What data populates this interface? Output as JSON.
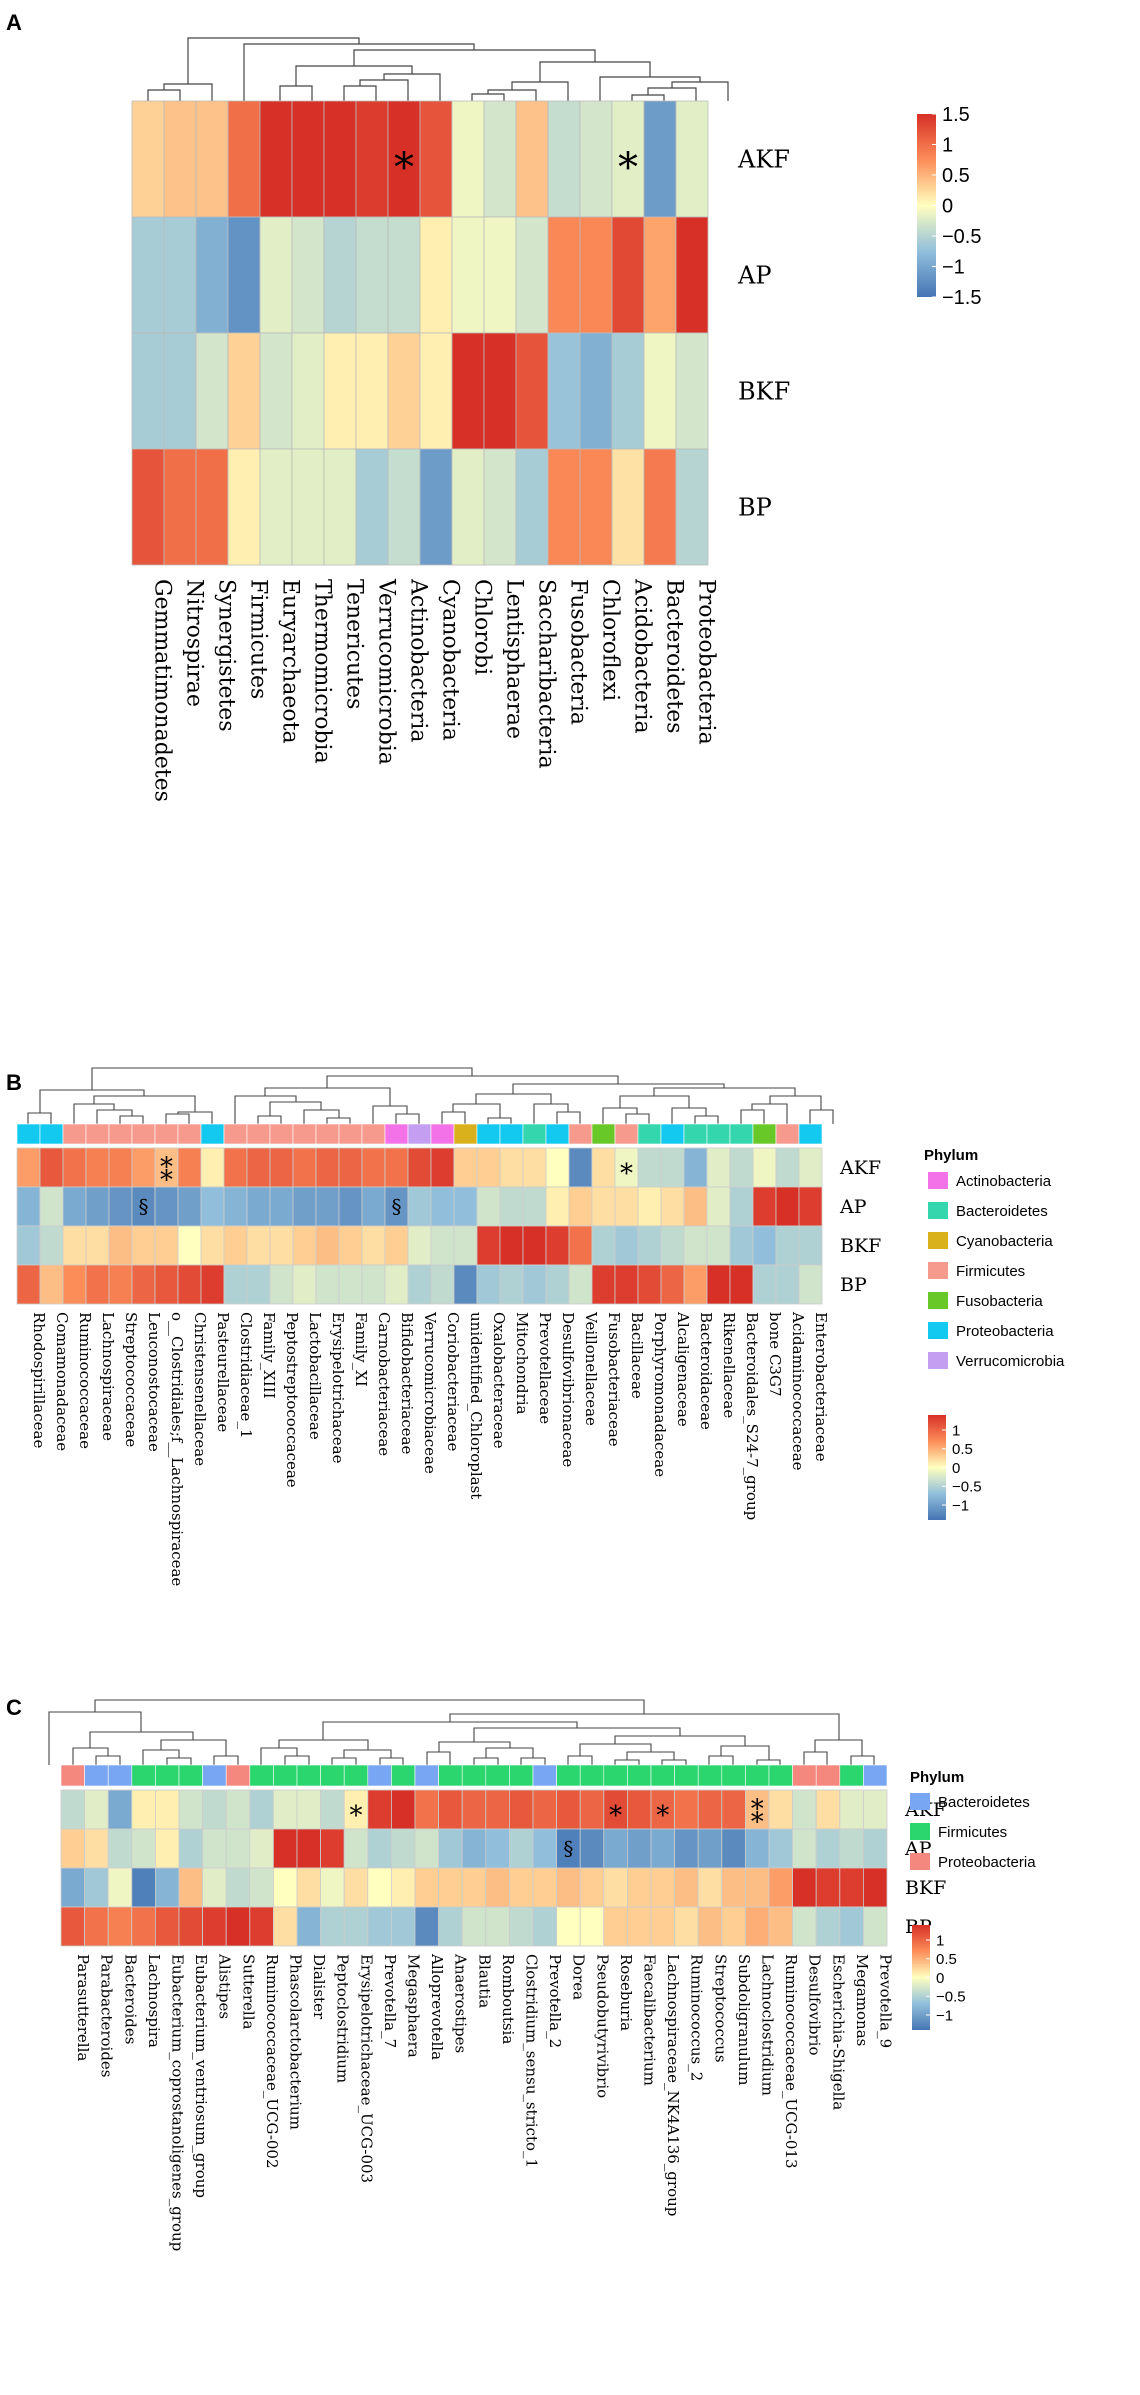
{
  "chart_data": [
    {
      "panel": "A",
      "type": "heatmap",
      "rows": [
        "AKF",
        "AP",
        "BKF",
        "BP"
      ],
      "columns": [
        "Gemmatimonadetes",
        "Nitrospirae",
        "Synergistetes",
        "Firmicutes",
        "Euryarchaeota",
        "Thermomicrobia",
        "Tenericutes",
        "Verrucomicrobia",
        "Actinobacteria",
        "Cyanobacteria",
        "Chlorobi",
        "Lentisphaerae",
        "Saccharibacteria",
        "Fusobacteria",
        "Chloroflexi",
        "Acidobacteria",
        "Bacteroidetes",
        "Proteobacteria"
      ],
      "values": [
        [
          0.3,
          0.4,
          0.4,
          1.0,
          1.5,
          1.5,
          1.5,
          1.4,
          1.5,
          1.2,
          -0.1,
          -0.3,
          0.4,
          -0.4,
          -0.3,
          -0.2,
          -1.1,
          -0.2
        ],
        [
          -0.6,
          -0.6,
          -0.9,
          -1.2,
          -0.2,
          -0.3,
          -0.5,
          -0.4,
          -0.4,
          0.1,
          -0.1,
          -0.1,
          -0.3,
          0.8,
          0.8,
          1.3,
          0.6,
          1.5
        ],
        [
          -0.6,
          -0.6,
          -0.3,
          0.3,
          -0.3,
          -0.2,
          0.1,
          0.1,
          0.3,
          0.1,
          1.5,
          1.5,
          1.2,
          -0.7,
          -0.9,
          -0.6,
          -0.1,
          -0.3
        ],
        [
          1.2,
          1.0,
          1.0,
          0.1,
          -0.2,
          -0.2,
          -0.2,
          -0.6,
          -0.4,
          -1.1,
          -0.2,
          -0.3,
          -0.6,
          0.8,
          0.8,
          0.2,
          0.9,
          -0.5
        ]
      ],
      "annotations": [
        {
          "row": 0,
          "col": 8,
          "text": "*"
        },
        {
          "row": 0,
          "col": 15,
          "text": "*"
        }
      ],
      "legend": {
        "ticks": [
          "1.5",
          "1",
          "0.5",
          "0",
          "−0.5",
          "−1",
          "−1.5"
        ],
        "range": [
          -1.5,
          1.5
        ]
      }
    },
    {
      "panel": "B",
      "type": "heatmap",
      "rows": [
        "AKF",
        "AP",
        "BKF",
        "BP"
      ],
      "columns": [
        "Rhodospirillaceae",
        "Comamonadaceae",
        "Ruminococcaceae",
        "Lachnospiraceae",
        "Streptococcaceae",
        "Leuconostocaceae",
        "o__Clostridiales;f__Lachnospiraceae",
        "Christensenellaceae",
        "Pasteurellaceae",
        "Clostridiaceae_1",
        "Family_XIII",
        "Peptostreptococcaceae",
        "Lactobacillaceae",
        "Erysipelotrichaceae",
        "Family_XI",
        "Carnobacteriaceae",
        "Bifidobacteriaceae",
        "Verrucomicrobiaceae",
        "Coriobacteriaceae",
        "unidentified_Chloroplast",
        "Oxalobacteraceae",
        "Mitochondria",
        "Prevotellaceae",
        "Desulfovibrionaceae",
        "Veillonellaceae",
        "Fusobacteriaceae",
        "Bacillaceae",
        "Porphyromonadaceae",
        "Alcaligenaceae",
        "Bacteroidaceae",
        "Rikenellaceae",
        "Bacteroidales_S24-7_group",
        "bone C3G7",
        "Acidaminococcaceae",
        "Enterobacteriaceae"
      ],
      "phylum": [
        "Proteobacteria",
        "Proteobacteria",
        "Firmicutes",
        "Firmicutes",
        "Firmicutes",
        "Firmicutes",
        "Firmicutes",
        "Firmicutes",
        "Proteobacteria",
        "Firmicutes",
        "Firmicutes",
        "Firmicutes",
        "Firmicutes",
        "Firmicutes",
        "Firmicutes",
        "Firmicutes",
        "Actinobacteria",
        "Verrucomicrobia",
        "Actinobacteria",
        "Cyanobacteria",
        "Proteobacteria",
        "Proteobacteria",
        "Bacteroidetes",
        "Proteobacteria",
        "Firmicutes",
        "Fusobacteria",
        "Firmicutes",
        "Bacteroidetes",
        "Proteobacteria",
        "Bacteroidetes",
        "Bacteroidetes",
        "Bacteroidetes",
        "Fusobacteria",
        "Firmicutes",
        "Proteobacteria"
      ],
      "values": [
        [
          0.6,
          1.1,
          0.9,
          0.8,
          0.8,
          0.6,
          0.4,
          0.8,
          0.1,
          0.9,
          1.0,
          1.0,
          0.9,
          1.0,
          1.0,
          0.9,
          0.9,
          1.2,
          1.3,
          0.3,
          0.3,
          0.2,
          0.2,
          0.0,
          -1.2,
          0.2,
          -0.1,
          -0.4,
          -0.4,
          -0.8,
          -0.2,
          -0.4,
          -0.1,
          -0.4,
          -0.2
        ],
        [
          -0.8,
          -0.3,
          -0.9,
          -1.0,
          -1.1,
          -1.2,
          -1.1,
          -1.0,
          -0.7,
          -0.8,
          -0.9,
          -0.9,
          -1.0,
          -1.0,
          -1.1,
          -0.9,
          -1.1,
          -0.6,
          -0.7,
          -0.7,
          -0.3,
          -0.4,
          -0.4,
          0.1,
          0.3,
          0.2,
          0.2,
          0.1,
          0.2,
          0.4,
          -0.2,
          -0.5,
          1.3,
          1.4,
          1.3
        ],
        [
          -0.6,
          -0.4,
          0.2,
          0.2,
          0.4,
          0.3,
          0.3,
          0.0,
          0.2,
          0.3,
          0.2,
          0.2,
          0.3,
          0.4,
          0.3,
          0.2,
          0.3,
          -0.2,
          -0.3,
          -0.3,
          1.3,
          1.4,
          1.4,
          1.3,
          0.9,
          -0.5,
          -0.6,
          -0.5,
          -0.4,
          -0.3,
          -0.3,
          -0.6,
          -0.7,
          -0.5,
          -0.5
        ],
        [
          1.0,
          0.4,
          0.7,
          0.9,
          0.8,
          1.0,
          1.1,
          1.2,
          1.3,
          -0.5,
          -0.5,
          -0.3,
          -0.2,
          -0.3,
          -0.3,
          -0.3,
          -0.2,
          -0.5,
          -0.4,
          -1.2,
          -0.6,
          -0.5,
          -0.6,
          -0.5,
          -0.3,
          1.3,
          1.3,
          1.2,
          1.0,
          0.6,
          1.4,
          1.4,
          -0.5,
          -0.5,
          -0.3
        ]
      ],
      "annotations": [
        {
          "row": 0,
          "col": 6,
          "text": "*"
        },
        {
          "row": 0,
          "col": 6,
          "text": "*"
        },
        {
          "row": 0,
          "col": 26,
          "text": "*"
        },
        {
          "row": 1,
          "col": 5,
          "text": "§"
        },
        {
          "row": 1,
          "col": 16,
          "text": "§"
        }
      ],
      "legend_title": "Phylum",
      "legend": [
        "Actinobacteria",
        "Bacteroidetes",
        "Cyanobacteria",
        "Firmicutes",
        "Fusobacteria",
        "Proteobacteria",
        "Verrucomicrobia"
      ],
      "legend_colors": [
        "#f472e8",
        "#33d6ad",
        "#d8b11c",
        "#f79a8e",
        "#68c827",
        "#13c9ef",
        "#c49ef0"
      ],
      "scale_ticks": [
        "1",
        "0.5",
        "0",
        "−0.5",
        "−1"
      ],
      "range": [
        -1.4,
        1.4
      ]
    },
    {
      "panel": "C",
      "type": "heatmap",
      "rows": [
        "AKF",
        "AP",
        "BKF",
        "BP"
      ],
      "columns": [
        "Parasutterella",
        "Parabacteroides",
        "Bacteroides",
        "Lachnospira",
        "Eubacterium_coprostanoligenes_group",
        "Eubacterium_ventriosum_group",
        "Alistipes",
        "Sutterella",
        "Ruminococcaceae_UCG-002",
        "Phascolarctobacterium",
        "Dialister",
        "Peptoclostridium",
        "Erysipelotrichaceae_UCG-003",
        "Prevotella_7",
        "Megasphaera",
        "Alloprevotella",
        "Anaerostipes",
        "Blautia",
        "Romboutsia",
        "Clostridium_sensu_stricto_1",
        "Prevotella_2",
        "Dorea",
        "Pseudobutyrivibrio",
        "Roseburia",
        "Faecalibacterium",
        "Lachnospiraceae_NK4A136_group",
        "Ruminococcus_2",
        "Streptococcus",
        "Subdoligranulum",
        "Lachnoclostridium",
        "Ruminococcaceae_UCG-013",
        "Desulfovibrio",
        "Escherichia-Shigella",
        "Megamonas",
        "Prevotella_9"
      ],
      "phylum": [
        "Proteobacteria",
        "Bacteroidetes",
        "Bacteroidetes",
        "Firmicutes",
        "Firmicutes",
        "Firmicutes",
        "Bacteroidetes",
        "Proteobacteria",
        "Firmicutes",
        "Firmicutes",
        "Firmicutes",
        "Firmicutes",
        "Firmicutes",
        "Bacteroidetes",
        "Firmicutes",
        "Bacteroidetes",
        "Firmicutes",
        "Firmicutes",
        "Firmicutes",
        "Firmicutes",
        "Bacteroidetes",
        "Firmicutes",
        "Firmicutes",
        "Firmicutes",
        "Firmicutes",
        "Firmicutes",
        "Firmicutes",
        "Firmicutes",
        "Firmicutes",
        "Firmicutes",
        "Firmicutes",
        "Proteobacteria",
        "Proteobacteria",
        "Firmicutes",
        "Bacteroidetes"
      ],
      "values": [
        [
          -0.4,
          -0.2,
          -0.9,
          0.1,
          0.1,
          -0.3,
          -0.4,
          -0.3,
          -0.5,
          -0.2,
          -0.2,
          -0.4,
          0.1,
          1.3,
          1.4,
          0.9,
          1.1,
          1.0,
          1.0,
          1.1,
          1.0,
          1.1,
          1.0,
          1.2,
          1.1,
          1.0,
          0.9,
          1.0,
          1.0,
          0.4,
          0.2,
          -0.3,
          0.2,
          -0.2,
          -0.2
        ],
        [
          0.3,
          0.2,
          -0.4,
          -0.3,
          0.1,
          -0.5,
          -0.3,
          -0.3,
          -0.2,
          1.4,
          1.4,
          1.3,
          -0.3,
          -0.5,
          -0.4,
          -0.3,
          -0.6,
          -0.8,
          -0.7,
          -0.5,
          -0.7,
          -1.3,
          -1.2,
          -0.9,
          -1.0,
          -0.9,
          -1.1,
          -1.0,
          -1.2,
          -0.8,
          -0.6,
          -0.3,
          -0.5,
          -0.4,
          -0.5
        ],
        [
          -0.9,
          -0.6,
          -0.1,
          -1.3,
          -0.8,
          0.4,
          -0.2,
          -0.4,
          -0.3,
          0.0,
          0.2,
          -0.1,
          0.2,
          0.0,
          0.1,
          0.3,
          0.3,
          0.3,
          0.4,
          0.3,
          0.3,
          0.4,
          0.3,
          0.2,
          0.3,
          0.3,
          0.4,
          0.2,
          0.4,
          0.4,
          0.6,
          1.4,
          1.3,
          1.3,
          1.4
        ],
        [
          1.1,
          0.9,
          0.8,
          0.9,
          1.1,
          1.2,
          1.3,
          1.4,
          1.3,
          0.2,
          -0.8,
          -0.5,
          -0.5,
          -0.6,
          -0.6,
          -1.2,
          -0.5,
          -0.3,
          -0.3,
          -0.4,
          -0.5,
          0.0,
          0.0,
          0.3,
          0.3,
          0.3,
          0.2,
          0.4,
          0.3,
          0.5,
          0.4,
          -0.3,
          -0.5,
          -0.6,
          -0.3
        ]
      ],
      "annotations": [
        {
          "row": 0,
          "col": 12,
          "text": "*"
        },
        {
          "row": 0,
          "col": 23,
          "text": "*"
        },
        {
          "row": 0,
          "col": 25,
          "text": "*"
        },
        {
          "row": 0,
          "col": 29,
          "text": "*"
        },
        {
          "row": 0,
          "col": 29,
          "text": "*"
        },
        {
          "row": 1,
          "col": 21,
          "text": "§"
        }
      ],
      "legend_title": "Phylum",
      "legend": [
        "Bacteroidetes",
        "Firmicutes",
        "Proteobacteria"
      ],
      "legend_colors": [
        "#79a6f2",
        "#2bd66e",
        "#f4877e"
      ],
      "scale_ticks": [
        "1",
        "0.5",
        "0",
        "−0.5",
        "−1"
      ],
      "range": [
        -1.4,
        1.4
      ]
    }
  ]
}
